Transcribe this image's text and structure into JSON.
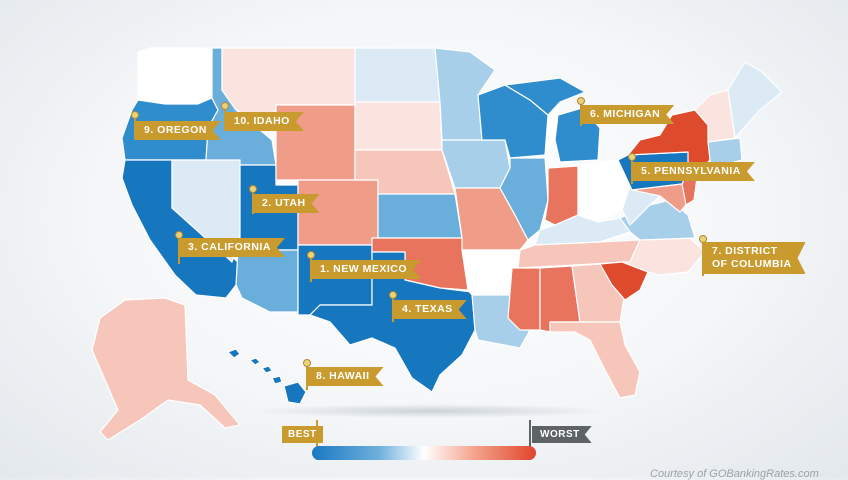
{
  "title": "",
  "labels": [
    {
      "id": "rank-1",
      "text": "1. NEW MEXICO"
    },
    {
      "id": "rank-2",
      "text": "2. UTAH"
    },
    {
      "id": "rank-3",
      "text": "3. CALIFORNIA"
    },
    {
      "id": "rank-4",
      "text": "4. TEXAS"
    },
    {
      "id": "rank-5",
      "text": "5. PENNSYLVANIA"
    },
    {
      "id": "rank-6",
      "text": "6. MICHIGAN"
    },
    {
      "id": "rank-7",
      "text": "7. DISTRICT OF COLUMBIA"
    },
    {
      "id": "rank-8",
      "text": "8. HAWAII"
    },
    {
      "id": "rank-9",
      "text": "9. OREGON"
    },
    {
      "id": "rank-10",
      "text": "10. IDAHO"
    }
  ],
  "rank_7_line1": "7. DISTRICT",
  "rank_7_line2": "OF COLUMBIA",
  "legend": {
    "best_label": "BEST",
    "worst_label": "WORST",
    "colors": {
      "best": "#1a78c2",
      "neutral": "#ffffff",
      "worst": "#e0452a"
    }
  },
  "credit": "Courtesy of GOBankingRates.com",
  "palette": {
    "b1": "#1677bf",
    "b2": "#2f8ccd",
    "b3": "#6aaedb",
    "b4": "#a7cfea",
    "b5": "#dbeaf5",
    "w": "#ffffff",
    "r1": "#fbe3df",
    "r2": "#f6c6bb",
    "r3": "#ef9c89",
    "r4": "#e8745e",
    "r5": "#dd4a2c"
  },
  "states": [
    {
      "name": "Washington",
      "shade": "w"
    },
    {
      "name": "Oregon",
      "shade": "b2"
    },
    {
      "name": "California",
      "shade": "b1"
    },
    {
      "name": "Idaho",
      "shade": "b3"
    },
    {
      "name": "Nevada",
      "shade": "b5"
    },
    {
      "name": "Utah",
      "shade": "b1"
    },
    {
      "name": "Arizona",
      "shade": "b3"
    },
    {
      "name": "Montana",
      "shade": "r1"
    },
    {
      "name": "Wyoming",
      "shade": "r3"
    },
    {
      "name": "Colorado",
      "shade": "r3"
    },
    {
      "name": "New Mexico",
      "shade": "b1"
    },
    {
      "name": "North Dakota",
      "shade": "b5"
    },
    {
      "name": "South Dakota",
      "shade": "r1"
    },
    {
      "name": "Nebraska",
      "shade": "r2"
    },
    {
      "name": "Kansas",
      "shade": "b3"
    },
    {
      "name": "Oklahoma",
      "shade": "r4"
    },
    {
      "name": "Texas",
      "shade": "b1"
    },
    {
      "name": "Minnesota",
      "shade": "b4"
    },
    {
      "name": "Iowa",
      "shade": "b4"
    },
    {
      "name": "Missouri",
      "shade": "r3"
    },
    {
      "name": "Arkansas",
      "shade": "w"
    },
    {
      "name": "Louisiana",
      "shade": "b4"
    },
    {
      "name": "Wisconsin",
      "shade": "b2"
    },
    {
      "name": "Illinois",
      "shade": "b3"
    },
    {
      "name": "Michigan",
      "shade": "b2"
    },
    {
      "name": "Indiana",
      "shade": "r4"
    },
    {
      "name": "Ohio",
      "shade": "w"
    },
    {
      "name": "Kentucky",
      "shade": "b5"
    },
    {
      "name": "Tennessee",
      "shade": "r2"
    },
    {
      "name": "Mississippi",
      "shade": "r4"
    },
    {
      "name": "Alabama",
      "shade": "r4"
    },
    {
      "name": "Georgia",
      "shade": "r2"
    },
    {
      "name": "Florida",
      "shade": "r2"
    },
    {
      "name": "South Carolina",
      "shade": "r5"
    },
    {
      "name": "North Carolina",
      "shade": "r1"
    },
    {
      "name": "Virginia",
      "shade": "b4"
    },
    {
      "name": "West Virginia",
      "shade": "b5"
    },
    {
      "name": "Pennsylvania",
      "shade": "b1"
    },
    {
      "name": "New York",
      "shade": "r5"
    },
    {
      "name": "New Jersey",
      "shade": "r4"
    },
    {
      "name": "Maryland",
      "shade": "r3"
    },
    {
      "name": "New England South",
      "shade": "b4"
    },
    {
      "name": "Vermont New Hampshire",
      "shade": "r1"
    },
    {
      "name": "Maine",
      "shade": "b5"
    },
    {
      "name": "Alaska",
      "shade": "r2"
    },
    {
      "name": "Hawaii",
      "shade": "b1"
    }
  ]
}
